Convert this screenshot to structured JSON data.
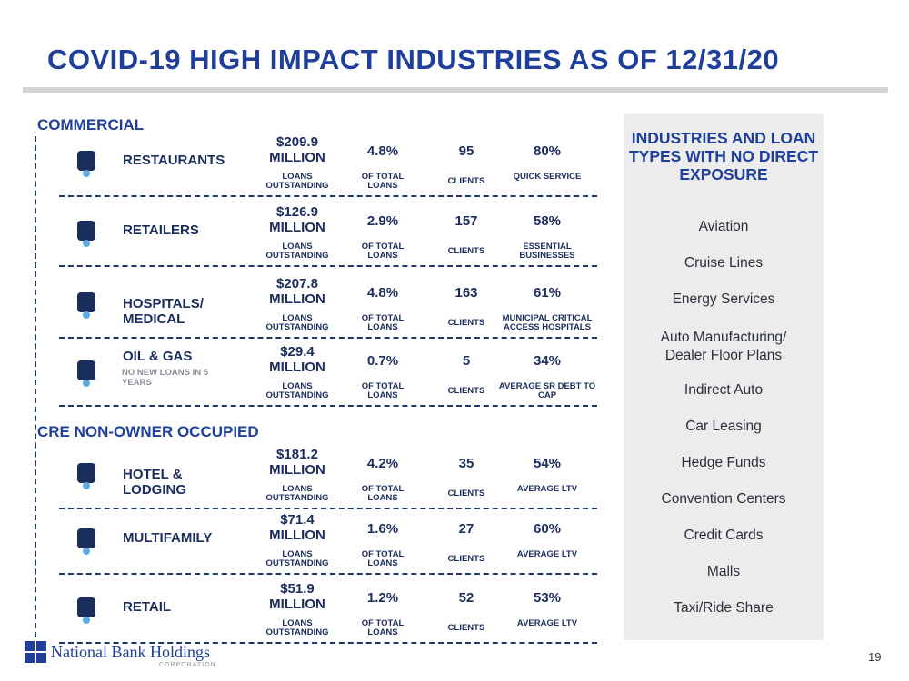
{
  "title": "COVID-19 HIGH IMPACT INDUSTRIES AS OF 12/31/20",
  "sections": [
    {
      "heading": "COMMERCIAL",
      "rows": [
        {
          "name": "RESTAURANTS",
          "amount": "$209.9",
          "amount_unit": "MILLION",
          "amount_label": "LOANS OUTSTANDING",
          "share": "4.8%",
          "share_label": "OF TOTAL LOANS",
          "clients": "95",
          "clients_label": "CLIENTS",
          "metric": "80%",
          "metric_label": "QUICK SERVICE"
        },
        {
          "name": "RETAILERS",
          "amount": "$126.9",
          "amount_unit": "MILLION",
          "amount_label": "LOANS OUTSTANDING",
          "share": "2.9%",
          "share_label": "OF TOTAL LOANS",
          "clients": "157",
          "clients_label": "CLIENTS",
          "metric": "58%",
          "metric_label": "ESSENTIAL BUSINESSES"
        },
        {
          "name": "HOSPITALS/ MEDICAL",
          "amount": "$207.8",
          "amount_unit": "MILLION",
          "amount_label": "LOANS OUTSTANDING",
          "share": "4.8%",
          "share_label": "OF TOTAL LOANS",
          "clients": "163",
          "clients_label": "CLIENTS",
          "metric": "61%",
          "metric_label": "MUNICIPAL CRITICAL ACCESS HOSPITALS"
        },
        {
          "name": "OIL & GAS",
          "note": "NO NEW LOANS IN 5 YEARS",
          "amount": "$29.4",
          "amount_unit": "MILLION",
          "amount_label": "LOANS OUTSTANDING",
          "share": "0.7%",
          "share_label": "OF TOTAL LOANS",
          "clients": "5",
          "clients_label": "CLIENTS",
          "metric": "34%",
          "metric_label": "AVERAGE SR DEBT TO CAP"
        }
      ]
    },
    {
      "heading": "CRE NON-OWNER OCCUPIED",
      "rows": [
        {
          "name": "HOTEL & LODGING",
          "amount": "$181.2",
          "amount_unit": "MILLION",
          "amount_label": "LOANS OUTSTANDING",
          "share": "4.2%",
          "share_label": "OF TOTAL LOANS",
          "clients": "35",
          "clients_label": "CLIENTS",
          "metric": "54%",
          "metric_label": "AVERAGE LTV"
        },
        {
          "name": "MULTIFAMILY",
          "amount": "$71.4",
          "amount_unit": "MILLION",
          "amount_label": "LOANS OUTSTANDING",
          "share": "1.6%",
          "share_label": "OF TOTAL LOANS",
          "clients": "27",
          "clients_label": "CLIENTS",
          "metric": "60%",
          "metric_label": "AVERAGE LTV"
        },
        {
          "name": "RETAIL",
          "amount": "$51.9",
          "amount_unit": "MILLION",
          "amount_label": "LOANS OUTSTANDING",
          "share": "1.2%",
          "share_label": "OF TOTAL LOANS",
          "clients": "52",
          "clients_label": "CLIENTS",
          "metric": "53%",
          "metric_label": "AVERAGE LTV"
        }
      ]
    }
  ],
  "panel": {
    "heading": "INDUSTRIES AND LOAN TYPES WITH NO DIRECT EXPOSURE",
    "items": [
      "Aviation",
      "Cruise Lines",
      "Energy Services",
      "Auto Manufacturing/ Dealer Floor Plans",
      "Indirect Auto",
      "Car Leasing",
      "Hedge Funds",
      "Convention Centers",
      "Credit Cards",
      "Malls",
      "Taxi/Ride Share"
    ]
  },
  "footer": {
    "company": "National Bank Holdings",
    "company_sub": "CORPORATION",
    "page": "19"
  }
}
